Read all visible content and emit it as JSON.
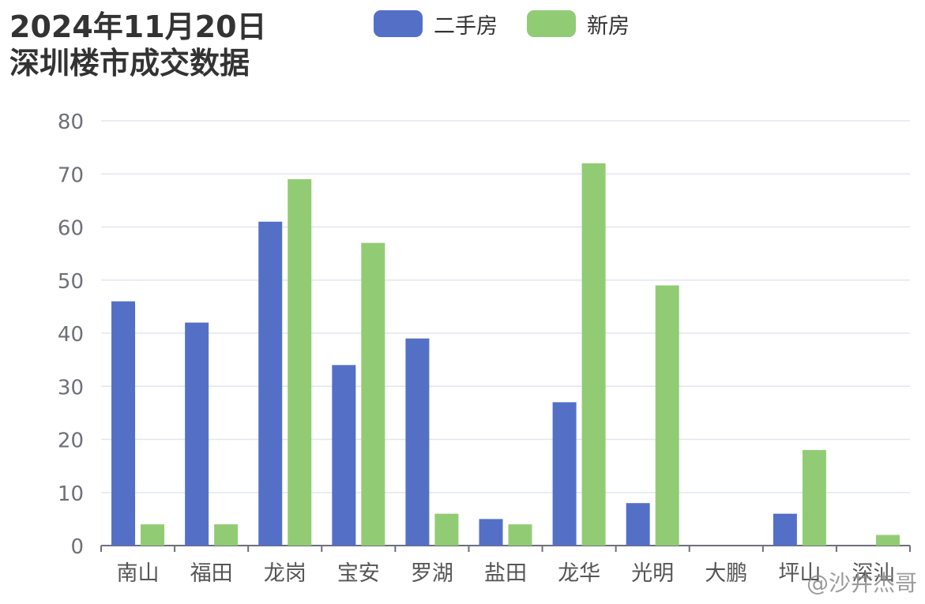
{
  "title": {
    "line1": "2024年11月20日",
    "line2": "深圳楼市成交数据"
  },
  "legend": [
    {
      "name": "二手房",
      "color": "#5470c6"
    },
    {
      "name": "新房",
      "color": "#91cc75"
    }
  ],
  "watermark": "@沙井杰哥",
  "chart_data": {
    "type": "bar",
    "categories": [
      "南山",
      "福田",
      "龙岗",
      "宝安",
      "罗湖",
      "盐田",
      "龙华",
      "光明",
      "大鹏",
      "坪山",
      "深汕"
    ],
    "series": [
      {
        "name": "二手房",
        "color": "#5470c6",
        "values": [
          46,
          42,
          61,
          34,
          39,
          5,
          27,
          8,
          0,
          6,
          0
        ]
      },
      {
        "name": "新房",
        "color": "#91cc75",
        "values": [
          4,
          4,
          69,
          57,
          6,
          4,
          72,
          49,
          0,
          18,
          2
        ]
      }
    ],
    "yticks": [
      0,
      10,
      20,
      30,
      40,
      50,
      60,
      70,
      80
    ],
    "ylim": [
      0,
      80
    ],
    "xlabel": "",
    "ylabel": "",
    "grid": true,
    "legend_position": "top-center"
  }
}
